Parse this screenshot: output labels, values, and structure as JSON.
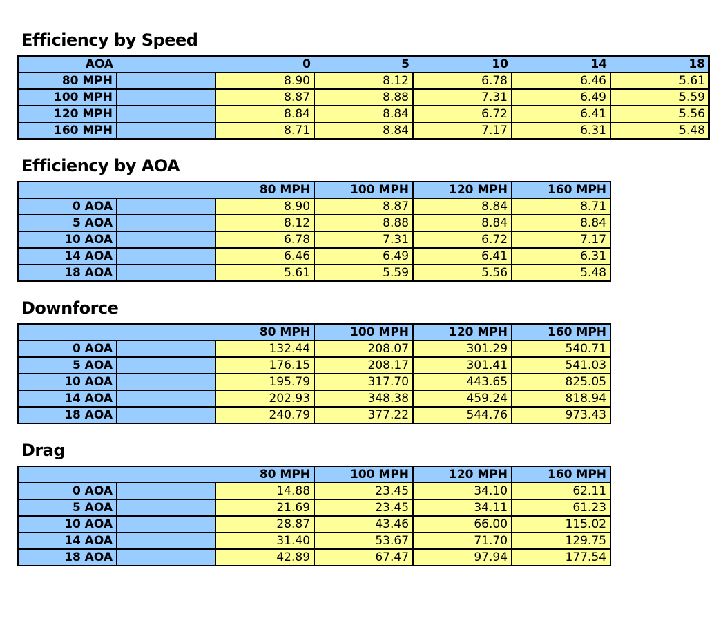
{
  "colors": {
    "header_fill": "#99CCFF",
    "value_fill": "#FFFF99",
    "border": "#000000",
    "text": "#000000",
    "background": "#FFFFFF"
  },
  "tables": [
    {
      "title": "Efficiency by Speed",
      "corner_label": "AOA",
      "col_headers": [
        "0",
        "5",
        "10",
        "14",
        "18"
      ],
      "rows": [
        {
          "label": "80 MPH",
          "values": [
            "8.90",
            "8.12",
            "6.78",
            "6.46",
            "5.61"
          ]
        },
        {
          "label": "100 MPH",
          "values": [
            "8.87",
            "8.88",
            "7.31",
            "6.49",
            "5.59"
          ]
        },
        {
          "label": "120 MPH",
          "values": [
            "8.84",
            "8.84",
            "6.72",
            "6.41",
            "5.56"
          ]
        },
        {
          "label": "160 MPH",
          "values": [
            "8.71",
            "8.84",
            "7.17",
            "6.31",
            "5.48"
          ]
        }
      ]
    },
    {
      "title": "Efficiency by AOA",
      "col_headers": [
        "80 MPH",
        "100 MPH",
        "120 MPH",
        "160 MPH"
      ],
      "rows": [
        {
          "label": "0 AOA",
          "values": [
            "8.90",
            "8.87",
            "8.84",
            "8.71"
          ]
        },
        {
          "label": "5 AOA",
          "values": [
            "8.12",
            "8.88",
            "8.84",
            "8.84"
          ]
        },
        {
          "label": "10 AOA",
          "values": [
            "6.78",
            "7.31",
            "6.72",
            "7.17"
          ]
        },
        {
          "label": "14 AOA",
          "values": [
            "6.46",
            "6.49",
            "6.41",
            "6.31"
          ]
        },
        {
          "label": "18 AOA",
          "values": [
            "5.61",
            "5.59",
            "5.56",
            "5.48"
          ]
        }
      ]
    },
    {
      "title": "Downforce",
      "col_headers": [
        "80 MPH",
        "100 MPH",
        "120 MPH",
        "160 MPH"
      ],
      "rows": [
        {
          "label": "0 AOA",
          "values": [
            "132.44",
            "208.07",
            "301.29",
            "540.71"
          ]
        },
        {
          "label": "5 AOA",
          "values": [
            "176.15",
            "208.17",
            "301.41",
            "541.03"
          ]
        },
        {
          "label": "10 AOA",
          "values": [
            "195.79",
            "317.70",
            "443.65",
            "825.05"
          ]
        },
        {
          "label": "14 AOA",
          "values": [
            "202.93",
            "348.38",
            "459.24",
            "818.94"
          ]
        },
        {
          "label": "18 AOA",
          "values": [
            "240.79",
            "377.22",
            "544.76",
            "973.43"
          ]
        }
      ]
    },
    {
      "title": "Drag",
      "col_headers": [
        "80 MPH",
        "100 MPH",
        "120 MPH",
        "160 MPH"
      ],
      "rows": [
        {
          "label": "0 AOA",
          "values": [
            "14.88",
            "23.45",
            "34.10",
            "62.11"
          ]
        },
        {
          "label": "5 AOA",
          "values": [
            "21.69",
            "23.45",
            "34.11",
            "61.23"
          ]
        },
        {
          "label": "10 AOA",
          "values": [
            "28.87",
            "43.46",
            "66.00",
            "115.02"
          ]
        },
        {
          "label": "14 AOA",
          "values": [
            "31.40",
            "53.67",
            "71.70",
            "129.75"
          ]
        },
        {
          "label": "18 AOA",
          "values": [
            "42.89",
            "67.47",
            "97.94",
            "177.54"
          ]
        }
      ]
    }
  ]
}
